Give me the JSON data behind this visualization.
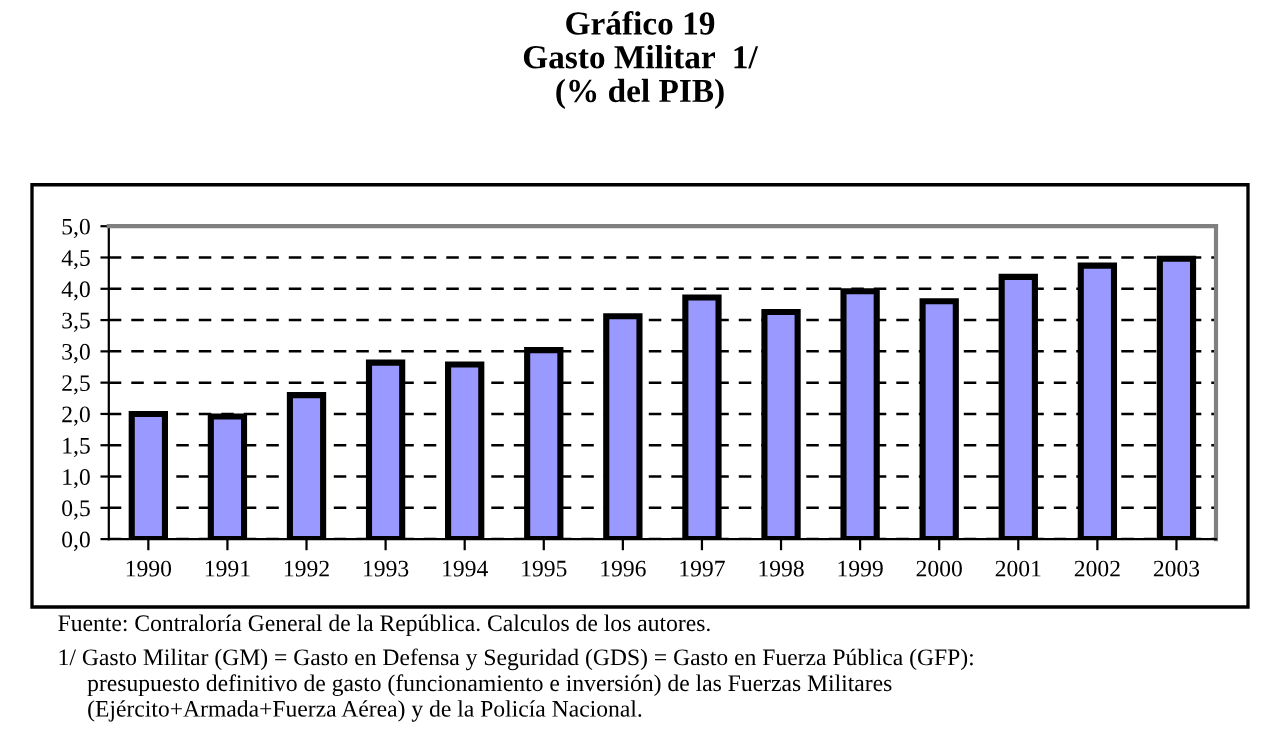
{
  "chart_data": {
    "type": "bar",
    "title": "Gráfico 19\nGasto Militar  1/\n(% del PIB)",
    "categories": [
      "1990",
      "1991",
      "1992",
      "1993",
      "1994",
      "1995",
      "1996",
      "1997",
      "1998",
      "1999",
      "2000",
      "2001",
      "2002",
      "2003"
    ],
    "values": [
      2.0,
      1.96,
      2.3,
      2.82,
      2.79,
      3.02,
      3.56,
      3.86,
      3.63,
      3.96,
      3.8,
      4.19,
      4.37,
      4.48
    ],
    "color": "#9999ff",
    "ylim": [
      0,
      5
    ],
    "yticks": [
      {
        "value": 0,
        "label": "0,0"
      },
      {
        "value": 0.5,
        "label": "0,5"
      },
      {
        "value": 1,
        "label": "1,0"
      },
      {
        "value": 1.5,
        "label": "1,5"
      },
      {
        "value": 2,
        "label": "2,0"
      },
      {
        "value": 2.5,
        "label": "2,5"
      },
      {
        "value": 3,
        "label": "3,0"
      },
      {
        "value": 3.5,
        "label": "3,5"
      },
      {
        "value": 4,
        "label": "4,0"
      },
      {
        "value": 4.5,
        "label": "4,5"
      },
      {
        "value": 5,
        "label": "5,0"
      }
    ],
    "grid": "y",
    "line_style": "dashed",
    "legend": false,
    "annotations": [
      "Fuente: Contraloría General de la República. Calculos de los autores.",
      "1/ Gasto Militar (GM) = Gasto en Defensa y Seguridad (GDS) = Gasto en Fuerza Pública (GFP):\n     presupuesto definitivo de gasto (funcionamiento e inversión) de las Fuerzas Militares\n     (Ejército+Armada+Fuerza Aérea) y de la Policía Nacional."
    ]
  }
}
